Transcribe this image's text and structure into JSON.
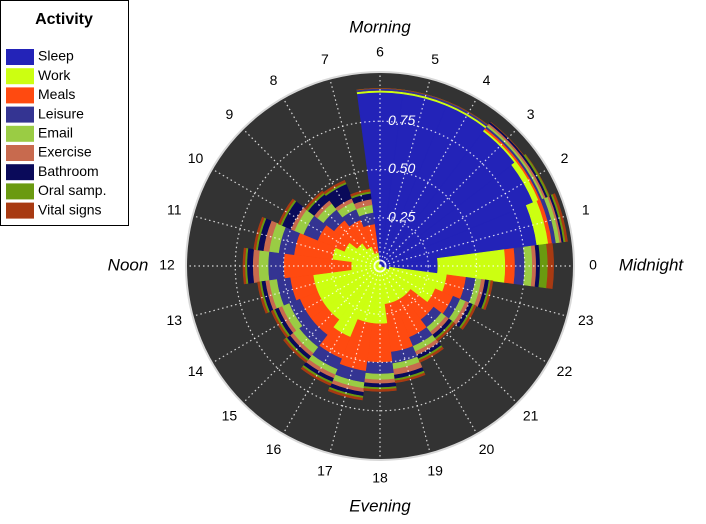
{
  "chart_data": {
    "type": "polar-stacked-area",
    "legend_title": "Activity",
    "annotations": [
      "Morning",
      "Noon",
      "Evening",
      "Midnight"
    ],
    "categories": [
      "0",
      "1",
      "2",
      "3",
      "4",
      "5",
      "6",
      "7",
      "8",
      "9",
      "10",
      "11",
      "12",
      "13",
      "14",
      "15",
      "16",
      "17",
      "18",
      "19",
      "20",
      "21",
      "22",
      "23"
    ],
    "rlim": [
      0,
      1
    ],
    "rticks": [
      0.25,
      0.5,
      0.75
    ],
    "rtick_labels": [
      "0.25",
      "0.50",
      "0.75"
    ],
    "grid": true,
    "legend": "top-left",
    "series": [
      {
        "name": "Sleep",
        "color": "#2323b8",
        "values": [
          0.3,
          0.82,
          0.86,
          0.88,
          0.9,
          0.9,
          0.9,
          0.02,
          0.01,
          0,
          0,
          0,
          0,
          0,
          0,
          0,
          0,
          0,
          0,
          0,
          0,
          0,
          0.01,
          0.05
        ]
      },
      {
        "name": "Work",
        "color": "#ccff11",
        "values": [
          0.35,
          0.06,
          0.03,
          0.01,
          0.01,
          0.01,
          0.01,
          0.05,
          0.1,
          0.15,
          0.2,
          0.25,
          0.15,
          0.35,
          0.35,
          0.35,
          0.4,
          0.3,
          0.3,
          0.2,
          0.2,
          0.2,
          0.3,
          0.3
        ]
      },
      {
        "name": "Meals",
        "color": "#ff4a10",
        "values": [
          0.05,
          0.02,
          0.01,
          0.01,
          0,
          0,
          0,
          0.15,
          0.15,
          0.15,
          0.15,
          0.2,
          0.35,
          0.12,
          0.1,
          0.1,
          0.12,
          0.25,
          0.2,
          0.25,
          0.2,
          0.15,
          0.1,
          0.1
        ]
      },
      {
        "name": "Leisure",
        "color": "#343492",
        "values": [
          0.05,
          0.02,
          0.01,
          0.01,
          0.01,
          0.01,
          0.01,
          0.06,
          0.06,
          0.07,
          0.08,
          0.08,
          0.08,
          0.07,
          0.06,
          0.08,
          0.06,
          0.06,
          0.06,
          0.06,
          0.05,
          0.05,
          0.04,
          0.05
        ]
      },
      {
        "name": "Email",
        "color": "#9acc44",
        "values": [
          0.04,
          0.02,
          0.01,
          0.01,
          0,
          0,
          0,
          0.04,
          0.04,
          0.04,
          0.05,
          0.05,
          0.05,
          0.04,
          0.04,
          0.04,
          0.03,
          0.03,
          0.03,
          0.03,
          0.03,
          0.03,
          0.03,
          0.03
        ]
      },
      {
        "name": "Exercise",
        "color": "#c86a4e",
        "values": [
          0.02,
          0.01,
          0.01,
          0.01,
          0,
          0,
          0,
          0.03,
          0.02,
          0.02,
          0.02,
          0.03,
          0.03,
          0.02,
          0.02,
          0.02,
          0.02,
          0.02,
          0.02,
          0.03,
          0.02,
          0.02,
          0.02,
          0.02
        ]
      },
      {
        "name": "Bathroom",
        "color": "#0a0a5a",
        "values": [
          0.02,
          0.01,
          0.01,
          0.01,
          0,
          0,
          0,
          0.03,
          0.08,
          0.04,
          0.05,
          0.03,
          0.03,
          0.02,
          0.02,
          0.02,
          0.02,
          0.02,
          0.02,
          0.02,
          0.02,
          0.02,
          0.02,
          0.02
        ]
      },
      {
        "name": "Oral samp.",
        "color": "#6a9a10",
        "values": [
          0.04,
          0.01,
          0.01,
          0,
          0,
          0,
          0,
          0.01,
          0.01,
          0.01,
          0.01,
          0.01,
          0.01,
          0.01,
          0.01,
          0.01,
          0.01,
          0.01,
          0.01,
          0.01,
          0.01,
          0.01,
          0.01,
          0.01
        ]
      },
      {
        "name": "Vital signs",
        "color": "#a83a12",
        "values": [
          0.03,
          0.01,
          0,
          0,
          0,
          0,
          0,
          0.01,
          0.01,
          0.01,
          0.01,
          0.01,
          0.01,
          0.01,
          0.01,
          0.01,
          0.01,
          0.01,
          0.01,
          0.01,
          0.01,
          0.01,
          0.01,
          0.01
        ]
      }
    ]
  }
}
